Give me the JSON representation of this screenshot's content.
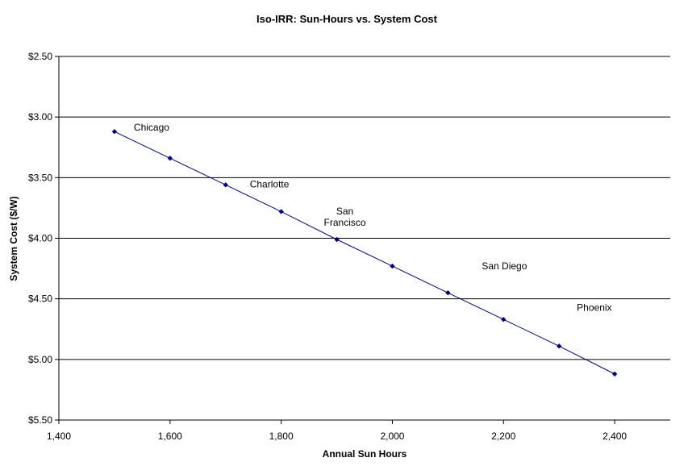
{
  "chart_data": {
    "type": "scatter",
    "title": "Iso-IRR: Sun-Hours vs. System Cost",
    "xlabel": "Annual Sun Hours",
    "ylabel": "System Cost ($/W)",
    "xlim": [
      1400,
      2500
    ],
    "ylim": [
      2.5,
      5.5
    ],
    "y_reversed": true,
    "grid": "horizontal",
    "legend": "none",
    "colors": {
      "series": "#000080",
      "gridline": "#000000"
    },
    "x_ticks": [
      {
        "value": 1400,
        "label": "1,400"
      },
      {
        "value": 1600,
        "label": "1,600"
      },
      {
        "value": 1800,
        "label": "1,800"
      },
      {
        "value": 2000,
        "label": "2,000"
      },
      {
        "value": 2200,
        "label": "2,200"
      },
      {
        "value": 2400,
        "label": "2,400"
      }
    ],
    "y_ticks": [
      {
        "value": 2.5,
        "label": "$2.50"
      },
      {
        "value": 3.0,
        "label": "$3.00"
      },
      {
        "value": 3.5,
        "label": "$3.50"
      },
      {
        "value": 4.0,
        "label": "$4.00"
      },
      {
        "value": 4.5,
        "label": "$4.50"
      },
      {
        "value": 5.0,
        "label": "$5.00"
      },
      {
        "value": 5.5,
        "label": "$5.50"
      }
    ],
    "series": [
      {
        "x": [
          1500,
          1600,
          1700,
          1800,
          1900,
          2000,
          2100,
          2200,
          2300,
          2400
        ],
        "y": [
          3.12,
          3.34,
          3.56,
          3.78,
          4.01,
          4.23,
          4.45,
          4.67,
          4.89,
          5.12
        ]
      }
    ],
    "annotations": [
      {
        "text": [
          "Chicago"
        ],
        "x": 1500,
        "y": 3.12
      },
      {
        "text": [
          "Charlotte"
        ],
        "x": 1700,
        "y": 3.56
      },
      {
        "text": [
          "San",
          "Francisco"
        ],
        "x": 1900,
        "y": 4.01
      },
      {
        "text": [
          "San Diego"
        ],
        "x": 2100,
        "y": 4.45
      },
      {
        "text": [
          "Phoenix"
        ],
        "x": 2300,
        "y": 4.89
      }
    ]
  }
}
